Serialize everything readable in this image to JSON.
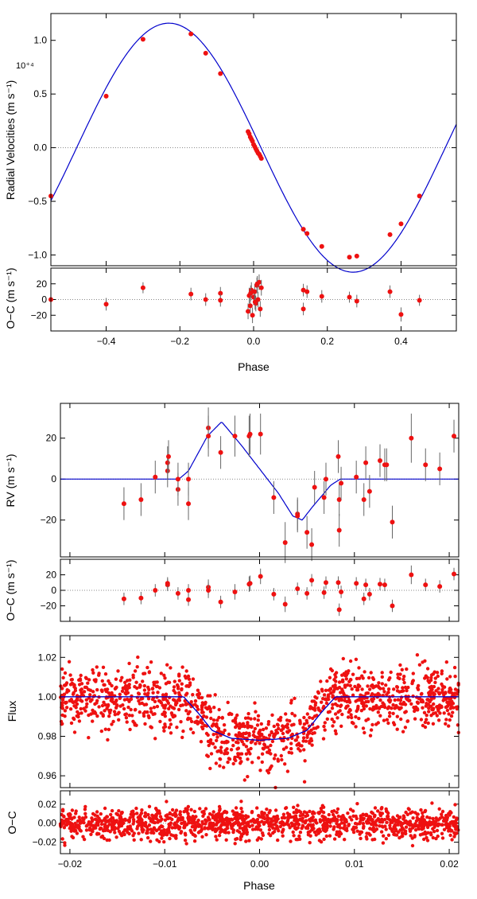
{
  "colors": {
    "model": "#0000cc",
    "points": "#ee1111",
    "errorbar": "#666666",
    "zero_line": "#888888"
  },
  "chart_data": [
    {
      "id": "rv_full",
      "type": "scatter",
      "ylabel": "Radial Velocities (m s⁻¹)",
      "multiplier": "10⁺⁴",
      "xlim": [
        -0.55,
        0.55
      ],
      "ylim": [
        -1.1,
        1.25
      ],
      "yticks": [
        -1.0,
        -0.5,
        0.0,
        0.5,
        1.0
      ],
      "ytick_labels": [
        "−1.0",
        "−0.5",
        "0.0",
        "0.5",
        "1.0"
      ],
      "model": {
        "K": 1.16,
        "period": 1,
        "phase_of_max": -0.23
      },
      "x": [
        -0.55,
        -0.4,
        -0.3,
        -0.17,
        -0.13,
        -0.09,
        -0.015,
        -0.012,
        -0.009,
        -0.006,
        -0.003,
        0.0,
        0.003,
        0.006,
        0.009,
        0.012,
        0.015,
        0.018,
        0.021,
        0.135,
        0.145,
        0.185,
        0.26,
        0.28,
        0.37,
        0.4,
        0.45
      ],
      "y": [
        -0.45,
        0.48,
        1.01,
        1.06,
        0.88,
        0.69,
        0.15,
        0.13,
        0.1,
        0.08,
        0.06,
        0.03,
        0.01,
        -0.01,
        -0.03,
        -0.05,
        -0.06,
        -0.08,
        -0.1,
        -0.76,
        -0.8,
        -0.92,
        -1.02,
        -1.01,
        -0.81,
        -0.71,
        -0.45
      ]
    },
    {
      "id": "rv_full_residuals",
      "type": "scatter",
      "xlabel": "Phase",
      "ylabel": "O−C (m s⁻¹)",
      "xlim": [
        -0.55,
        0.55
      ],
      "ylim": [
        -40,
        40
      ],
      "xticks": [
        -0.4,
        -0.2,
        0.0,
        0.2,
        0.4
      ],
      "xtick_labels": [
        "−0.4",
        "−0.2",
        "0.0",
        "0.2",
        "0.4"
      ],
      "yticks": [
        -20,
        0,
        20
      ],
      "ytick_labels": [
        "−20",
        "0",
        "20"
      ],
      "x": [
        -0.55,
        -0.4,
        -0.3,
        -0.17,
        -0.13,
        -0.09,
        -0.09,
        -0.015,
        -0.012,
        -0.009,
        -0.006,
        -0.003,
        0.0,
        0.003,
        0.006,
        0.009,
        0.012,
        0.015,
        0.018,
        0.021,
        -0.008,
        0.004,
        0.01,
        0.135,
        0.135,
        0.145,
        0.185,
        0.26,
        0.28,
        0.37,
        0.4,
        0.45
      ],
      "y": [
        0,
        -6,
        15,
        7,
        0,
        8,
        -1,
        -15,
        5,
        -8,
        12,
        -20,
        3,
        10,
        -5,
        18,
        0,
        22,
        -12,
        15,
        8,
        -3,
        20,
        12,
        -12,
        10,
        4,
        3,
        -2,
        10,
        -19,
        -1
      ],
      "err": [
        3,
        8,
        7,
        8,
        8,
        8,
        8,
        10,
        10,
        10,
        10,
        10,
        10,
        10,
        10,
        10,
        10,
        10,
        10,
        10,
        10,
        10,
        10,
        8,
        8,
        8,
        8,
        7,
        8,
        8,
        9,
        7
      ]
    },
    {
      "id": "rv_zoom",
      "type": "scatter",
      "ylabel": "RV (m s⁻¹)",
      "xlim": [
        -0.021,
        0.021
      ],
      "ylim": [
        -38,
        37
      ],
      "yticks": [
        -20,
        0,
        20
      ],
      "ytick_labels": [
        "−20",
        "0",
        "20"
      ],
      "model_x": [
        -0.021,
        -0.0085,
        -0.0075,
        -0.0055,
        -0.004,
        -0.002,
        0.0,
        0.002,
        0.0035,
        0.0045,
        0.0055,
        0.0075,
        0.0085,
        0.021
      ],
      "model_y": [
        0,
        0,
        4,
        21,
        28,
        17,
        5,
        -7,
        -18,
        -20,
        -14,
        -3,
        0,
        0
      ],
      "x": [
        -0.0143,
        -0.0125,
        -0.011,
        -0.0097,
        -0.0097,
        -0.0096,
        -0.0086,
        -0.0086,
        -0.0075,
        -0.0075,
        -0.0054,
        -0.0054,
        -0.0041,
        -0.0026,
        -0.0011,
        -0.001,
        0.0001,
        0.0015,
        0.004,
        0.004,
        0.0027,
        0.005,
        0.0055,
        0.0058,
        0.0068,
        0.007,
        0.0083,
        0.0084,
        0.0084,
        0.0086,
        0.0102,
        0.011,
        0.0112,
        0.0116,
        0.0127,
        0.0132,
        0.0134,
        0.014,
        0.016,
        0.0175,
        0.019,
        0.0205
      ],
      "y": [
        -12,
        -10,
        1,
        4,
        8,
        11,
        -5,
        0,
        -12,
        0,
        25,
        21,
        13,
        21,
        21,
        22,
        22,
        -9,
        -17,
        -18,
        -31,
        -26,
        -32,
        -4,
        -9,
        0,
        11,
        -10,
        -25,
        -2,
        1,
        -10,
        8,
        -6,
        9,
        7,
        7,
        -21,
        20,
        7,
        5,
        21
      ],
      "err": [
        8,
        8,
        8,
        8,
        8,
        8,
        8,
        8,
        8,
        8,
        10,
        10,
        8,
        10,
        10,
        10,
        10,
        8,
        8,
        8,
        10,
        8,
        8,
        8,
        8,
        8,
        8,
        8,
        8,
        8,
        8,
        8,
        8,
        8,
        8,
        8,
        8,
        8,
        12,
        8,
        8,
        8
      ]
    },
    {
      "id": "rv_zoom_residuals",
      "type": "scatter",
      "ylabel": "O−C (m s⁻¹)",
      "xlim": [
        -0.021,
        0.021
      ],
      "ylim": [
        -40,
        40
      ],
      "yticks": [
        -20,
        0,
        20
      ],
      "ytick_labels": [
        "−20",
        "0",
        "20"
      ],
      "x": [
        -0.0143,
        -0.0125,
        -0.011,
        -0.0097,
        -0.0097,
        -0.0086,
        -0.0075,
        -0.0075,
        -0.0054,
        -0.0054,
        -0.0041,
        -0.0026,
        -0.0011,
        -0.001,
        0.0001,
        0.0015,
        0.0027,
        0.004,
        0.005,
        0.0055,
        0.0068,
        0.007,
        0.0083,
        0.0084,
        0.0086,
        0.0102,
        0.011,
        0.0112,
        0.0116,
        0.0127,
        0.0132,
        0.014,
        0.016,
        0.0175,
        0.019,
        0.0205
      ],
      "y": [
        -11,
        -10,
        0,
        7,
        9,
        -4,
        -12,
        0,
        4,
        0,
        -15,
        -2,
        8,
        9,
        18,
        -5,
        -18,
        2,
        -4,
        13,
        -3,
        10,
        10,
        -25,
        -2,
        9,
        -11,
        7,
        -5,
        8,
        7,
        -20,
        20,
        7,
        5,
        21
      ],
      "err": [
        8,
        8,
        8,
        8,
        8,
        8,
        8,
        8,
        10,
        10,
        8,
        10,
        10,
        10,
        10,
        8,
        10,
        8,
        8,
        8,
        8,
        8,
        8,
        8,
        8,
        8,
        8,
        8,
        8,
        8,
        8,
        8,
        12,
        8,
        8,
        8
      ]
    },
    {
      "id": "flux",
      "type": "scatter",
      "ylabel": "Flux",
      "xlim": [
        -0.021,
        0.021
      ],
      "ylim": [
        0.954,
        1.031
      ],
      "yticks": [
        0.96,
        0.98,
        1.0,
        1.02
      ],
      "ytick_labels": [
        "0.96",
        "0.98",
        "1.00",
        "1.02"
      ],
      "model_x": [
        -0.021,
        -0.008,
        -0.0065,
        -0.005,
        -0.003,
        0.0,
        0.003,
        0.005,
        0.0065,
        0.008,
        0.021
      ],
      "model_y": [
        1.0,
        1.0,
        0.992,
        0.983,
        0.979,
        0.978,
        0.979,
        0.983,
        0.992,
        1.0,
        1.0
      ],
      "generated": {
        "n_points": 1300,
        "scatter_sd": 0.008
      }
    },
    {
      "id": "flux_residuals",
      "type": "scatter",
      "xlabel": "Phase",
      "ylabel": "O−C",
      "xlim": [
        -0.021,
        0.021
      ],
      "ylim": [
        -0.032,
        0.034
      ],
      "xticks": [
        -0.02,
        -0.01,
        0.0,
        0.01,
        0.02
      ],
      "xtick_labels": [
        "−0.02",
        "−0.01",
        "0.00",
        "0.01",
        "0.02"
      ],
      "yticks": [
        -0.02,
        0.0,
        0.02
      ],
      "ytick_labels": [
        "−0.02",
        "0.00",
        "0.02"
      ],
      "generated": {
        "n_points": 1300,
        "scatter_sd": 0.008
      }
    }
  ]
}
